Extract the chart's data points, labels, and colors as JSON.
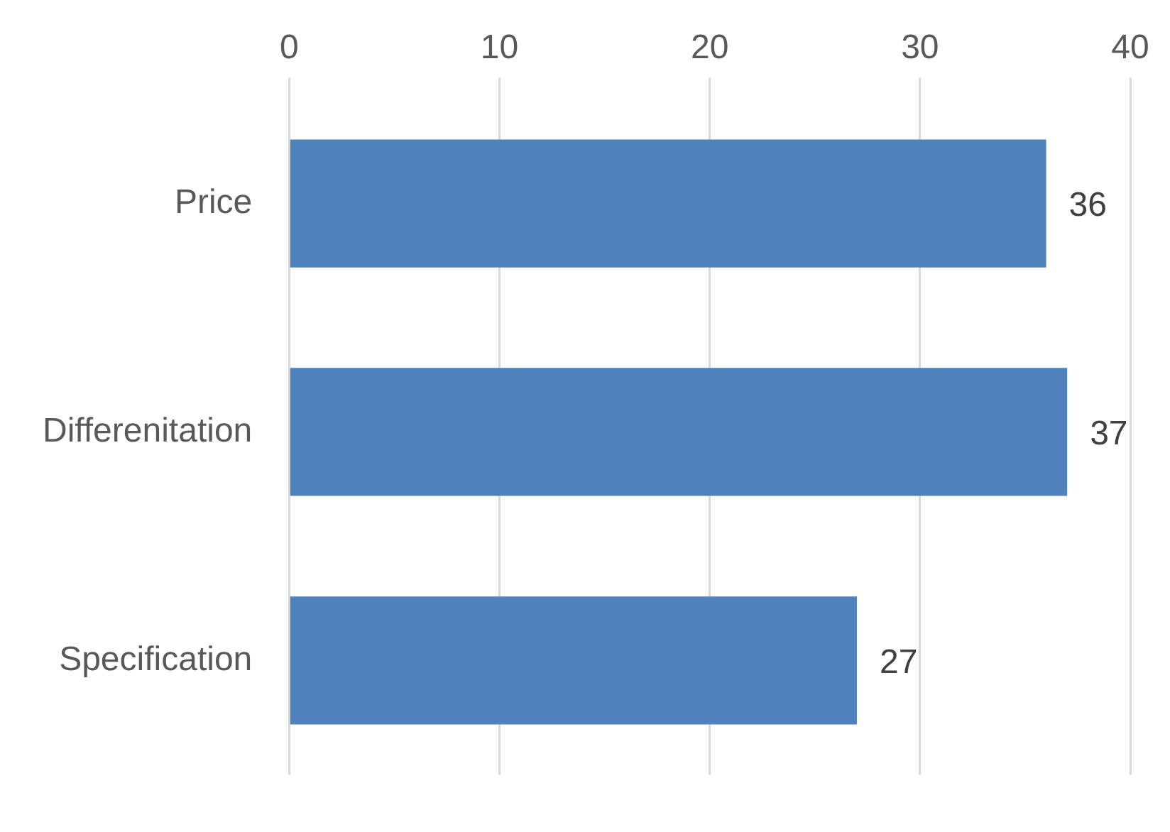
{
  "chart_data": {
    "type": "bar",
    "orientation": "horizontal",
    "categories": [
      "Price",
      "Differenitation",
      "Specification"
    ],
    "values": [
      36,
      37,
      27
    ],
    "color": "#4f81bd",
    "xlim": [
      0,
      40
    ],
    "xticks": [
      0,
      10,
      20,
      30,
      40
    ],
    "grid": "x",
    "data_labels": true
  }
}
